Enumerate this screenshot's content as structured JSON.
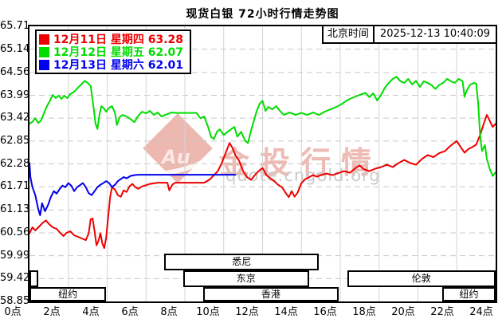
{
  "title": "现货白银 72小时行情走势图",
  "time_label": "北京时间",
  "timestamp": "2025-12-13 10:40:09",
  "watermark": {
    "logo_text": "Au",
    "brand": "金投行情",
    "url": "quote.cngold.org"
  },
  "colors": {
    "red": "#ee0000",
    "green": "#00dd00",
    "blue": "#0000ee",
    "grid_vertical": "#d4d4d4",
    "grid_horizontal": "#c8c8c8",
    "border": "#000000",
    "watermark_pink": "#e59e94",
    "watermark_gray": "#cbcbcb"
  },
  "legend": [
    {
      "label": "12月11日 星期四",
      "value": "63.28",
      "color": "#ee0000"
    },
    {
      "label": "12月12日 星期五",
      "value": "62.07",
      "color": "#00dd00"
    },
    {
      "label": "12月13日 星期六",
      "value": "62.01",
      "color": "#0000ee"
    }
  ],
  "sessions": [
    {
      "label": "",
      "row": 1,
      "start": 0,
      "end": 0.45
    },
    {
      "label": "纽约",
      "row": 2,
      "start": 0,
      "end": 3.95
    },
    {
      "label": "悉尼",
      "row": 0,
      "start": 6.95,
      "end": 14.9
    },
    {
      "label": "东京",
      "row": 1,
      "start": 7.9,
      "end": 14.4
    },
    {
      "label": "香港",
      "row": 2,
      "start": 8.95,
      "end": 15.9
    },
    {
      "label": "伦敦",
      "row": 1,
      "start": 16.35,
      "end": 24
    },
    {
      "label": "纽约",
      "row": 2,
      "start": 21.25,
      "end": 24
    }
  ],
  "chart_data": {
    "type": "line",
    "title": "现货白银 72小时行情走势图",
    "x_unit": "hour",
    "xlim": [
      0,
      24
    ],
    "ylim": [
      58.85,
      65.71
    ],
    "grid": true,
    "legend_position": "top-left",
    "y_ticks": [
      65.71,
      65.14,
      64.56,
      63.99,
      63.42,
      62.85,
      62.28,
      61.71,
      61.13,
      60.56,
      59.99,
      59.42,
      58.85
    ],
    "x_ticks": [
      "0点",
      "2点",
      "4点",
      "6点",
      "8点",
      "10点",
      "12点",
      "14点",
      "16点",
      "18点",
      "20点",
      "22点",
      "24点"
    ],
    "series": [
      {
        "name": "12月11日 星期四",
        "close": 63.28,
        "color": "#ee0000",
        "points": [
          [
            0,
            60.55
          ],
          [
            0.15,
            60.7
          ],
          [
            0.3,
            60.62
          ],
          [
            0.5,
            60.72
          ],
          [
            0.7,
            60.82
          ],
          [
            0.85,
            60.87
          ],
          [
            1.0,
            60.78
          ],
          [
            1.2,
            60.7
          ],
          [
            1.4,
            60.66
          ],
          [
            1.6,
            60.55
          ],
          [
            1.75,
            60.48
          ],
          [
            1.9,
            60.56
          ],
          [
            2.1,
            60.6
          ],
          [
            2.3,
            60.5
          ],
          [
            2.5,
            60.46
          ],
          [
            2.7,
            60.42
          ],
          [
            2.9,
            60.38
          ],
          [
            3.05,
            60.55
          ],
          [
            3.15,
            60.9
          ],
          [
            3.25,
            60.92
          ],
          [
            3.35,
            60.6
          ],
          [
            3.45,
            60.25
          ],
          [
            3.55,
            60.36
          ],
          [
            3.65,
            60.55
          ],
          [
            3.75,
            60.3
          ],
          [
            3.85,
            60.18
          ],
          [
            3.95,
            60.45
          ],
          [
            4.05,
            60.95
          ],
          [
            4.15,
            61.45
          ],
          [
            4.25,
            61.7
          ],
          [
            4.4,
            61.64
          ],
          [
            4.55,
            61.5
          ],
          [
            4.7,
            61.46
          ],
          [
            4.85,
            61.62
          ],
          [
            5.0,
            61.58
          ],
          [
            5.15,
            61.72
          ],
          [
            5.3,
            61.78
          ],
          [
            5.45,
            61.7
          ],
          [
            5.6,
            61.66
          ],
          [
            5.8,
            61.72
          ],
          [
            6.0,
            61.75
          ],
          [
            6.2,
            61.78
          ],
          [
            6.6,
            61.81
          ],
          [
            7.1,
            61.81
          ],
          [
            7.2,
            61.62
          ],
          [
            7.35,
            61.76
          ],
          [
            7.5,
            61.81
          ],
          [
            9.0,
            61.81
          ],
          [
            9.3,
            61.9
          ],
          [
            9.5,
            62.0
          ],
          [
            9.7,
            62.1
          ],
          [
            9.9,
            62.3
          ],
          [
            10.1,
            62.55
          ],
          [
            10.3,
            62.8
          ],
          [
            10.45,
            62.68
          ],
          [
            10.6,
            62.5
          ],
          [
            10.8,
            62.35
          ],
          [
            11.0,
            62.1
          ],
          [
            11.2,
            61.95
          ],
          [
            11.4,
            61.88
          ],
          [
            11.6,
            62.0
          ],
          [
            11.8,
            62.1
          ],
          [
            12.0,
            62.18
          ],
          [
            12.2,
            62.0
          ],
          [
            12.4,
            61.92
          ],
          [
            12.6,
            61.85
          ],
          [
            12.8,
            61.76
          ],
          [
            13.0,
            61.7
          ],
          [
            13.2,
            61.55
          ],
          [
            13.35,
            61.45
          ],
          [
            13.5,
            61.6
          ],
          [
            13.65,
            61.46
          ],
          [
            13.8,
            61.56
          ],
          [
            14.0,
            61.8
          ],
          [
            14.2,
            61.9
          ],
          [
            14.4,
            61.95
          ],
          [
            14.6,
            62.0
          ],
          [
            14.8,
            61.96
          ],
          [
            15.0,
            62.0
          ],
          [
            15.3,
            62.04
          ],
          [
            15.6,
            62.0
          ],
          [
            15.9,
            62.05
          ],
          [
            16.2,
            62.1
          ],
          [
            16.5,
            62.06
          ],
          [
            16.8,
            62.18
          ],
          [
            17.0,
            62.24
          ],
          [
            17.2,
            62.15
          ],
          [
            17.5,
            62.1
          ],
          [
            17.8,
            62.16
          ],
          [
            18.1,
            62.2
          ],
          [
            18.4,
            62.26
          ],
          [
            18.7,
            62.2
          ],
          [
            19.0,
            62.3
          ],
          [
            19.3,
            62.38
          ],
          [
            19.6,
            62.3
          ],
          [
            19.9,
            62.26
          ],
          [
            20.2,
            62.4
          ],
          [
            20.5,
            62.5
          ],
          [
            20.8,
            62.45
          ],
          [
            21.1,
            62.55
          ],
          [
            21.4,
            62.6
          ],
          [
            21.6,
            62.7
          ],
          [
            21.8,
            62.78
          ],
          [
            22.0,
            62.85
          ],
          [
            22.2,
            62.7
          ],
          [
            22.4,
            62.56
          ],
          [
            22.6,
            62.65
          ],
          [
            22.8,
            62.7
          ],
          [
            23.0,
            62.76
          ],
          [
            23.2,
            63.0
          ],
          [
            23.4,
            63.3
          ],
          [
            23.55,
            63.5
          ],
          [
            23.7,
            63.35
          ],
          [
            23.85,
            63.2
          ],
          [
            24,
            63.28
          ]
        ]
      },
      {
        "name": "12月12日 星期五",
        "close": 62.07,
        "color": "#00dd00",
        "points": [
          [
            0,
            63.28
          ],
          [
            0.15,
            63.33
          ],
          [
            0.3,
            63.42
          ],
          [
            0.45,
            63.3
          ],
          [
            0.6,
            63.36
          ],
          [
            0.75,
            63.55
          ],
          [
            0.9,
            63.72
          ],
          [
            1.05,
            63.85
          ],
          [
            1.2,
            64.0
          ],
          [
            1.35,
            63.92
          ],
          [
            1.5,
            63.98
          ],
          [
            1.65,
            63.9
          ],
          [
            1.8,
            63.98
          ],
          [
            1.95,
            63.92
          ],
          [
            2.1,
            64.02
          ],
          [
            2.3,
            64.08
          ],
          [
            2.5,
            64.18
          ],
          [
            2.7,
            64.28
          ],
          [
            2.85,
            64.35
          ],
          [
            3.0,
            64.3
          ],
          [
            3.15,
            64.22
          ],
          [
            3.3,
            63.7
          ],
          [
            3.4,
            63.28
          ],
          [
            3.5,
            63.15
          ],
          [
            3.6,
            63.5
          ],
          [
            3.7,
            63.72
          ],
          [
            3.8,
            63.68
          ],
          [
            3.95,
            63.58
          ],
          [
            4.1,
            63.68
          ],
          [
            4.25,
            63.72
          ],
          [
            4.4,
            63.55
          ],
          [
            4.5,
            63.25
          ],
          [
            4.65,
            63.45
          ],
          [
            4.8,
            63.5
          ],
          [
            5.0,
            63.46
          ],
          [
            5.2,
            63.4
          ],
          [
            5.4,
            63.32
          ],
          [
            5.6,
            63.48
          ],
          [
            5.8,
            63.58
          ],
          [
            6.0,
            63.54
          ],
          [
            6.2,
            63.6
          ],
          [
            6.4,
            63.5
          ],
          [
            6.6,
            63.56
          ],
          [
            6.8,
            63.46
          ],
          [
            7.0,
            63.5
          ],
          [
            7.3,
            63.56
          ],
          [
            7.55,
            63.55
          ],
          [
            8.6,
            63.55
          ],
          [
            8.8,
            63.42
          ],
          [
            9.0,
            63.46
          ],
          [
            9.2,
            63.2
          ],
          [
            9.35,
            62.95
          ],
          [
            9.5,
            62.9
          ],
          [
            9.65,
            63.08
          ],
          [
            9.8,
            63.14
          ],
          [
            10.0,
            63.0
          ],
          [
            10.2,
            63.08
          ],
          [
            10.4,
            63.15
          ],
          [
            10.55,
            63.2
          ],
          [
            10.7,
            62.96
          ],
          [
            10.9,
            63.08
          ],
          [
            11.1,
            62.86
          ],
          [
            11.25,
            62.8
          ],
          [
            11.4,
            63.1
          ],
          [
            11.55,
            63.35
          ],
          [
            11.7,
            63.6
          ],
          [
            11.85,
            63.78
          ],
          [
            12.0,
            63.85
          ],
          [
            12.15,
            63.6
          ],
          [
            12.3,
            63.7
          ],
          [
            12.5,
            63.64
          ],
          [
            12.7,
            63.72
          ],
          [
            12.9,
            63.6
          ],
          [
            13.1,
            63.5
          ],
          [
            13.4,
            63.56
          ],
          [
            13.7,
            63.5
          ],
          [
            14.0,
            63.55
          ],
          [
            14.3,
            63.5
          ],
          [
            14.6,
            63.56
          ],
          [
            14.9,
            63.5
          ],
          [
            15.2,
            63.58
          ],
          [
            15.5,
            63.64
          ],
          [
            15.8,
            63.7
          ],
          [
            16.1,
            63.78
          ],
          [
            16.4,
            63.88
          ],
          [
            16.7,
            63.94
          ],
          [
            17.0,
            64.0
          ],
          [
            17.3,
            64.05
          ],
          [
            17.5,
            63.94
          ],
          [
            17.7,
            64.04
          ],
          [
            17.9,
            63.86
          ],
          [
            18.1,
            64.0
          ],
          [
            18.3,
            64.18
          ],
          [
            18.5,
            64.3
          ],
          [
            18.7,
            64.4
          ],
          [
            18.9,
            64.45
          ],
          [
            19.1,
            64.34
          ],
          [
            19.3,
            64.3
          ],
          [
            19.5,
            64.4
          ],
          [
            19.7,
            64.26
          ],
          [
            19.9,
            64.35
          ],
          [
            20.1,
            64.2
          ],
          [
            20.3,
            64.34
          ],
          [
            20.5,
            64.3
          ],
          [
            20.7,
            64.24
          ],
          [
            20.9,
            64.15
          ],
          [
            21.1,
            64.25
          ],
          [
            21.3,
            64.3
          ],
          [
            21.5,
            64.4
          ],
          [
            21.7,
            64.34
          ],
          [
            21.9,
            64.3
          ],
          [
            22.1,
            64.4
          ],
          [
            22.3,
            64.34
          ],
          [
            22.4,
            63.95
          ],
          [
            22.5,
            64.1
          ],
          [
            22.7,
            64.26
          ],
          [
            22.9,
            64.3
          ],
          [
            23.0,
            64.28
          ],
          [
            23.1,
            63.8
          ],
          [
            23.2,
            63.0
          ],
          [
            23.3,
            62.6
          ],
          [
            23.45,
            62.75
          ],
          [
            23.55,
            62.4
          ],
          [
            23.7,
            62.15
          ],
          [
            23.85,
            61.98
          ],
          [
            24,
            62.07
          ]
        ]
      },
      {
        "name": "12月13日 星期六",
        "close": 62.01,
        "color": "#0000ee",
        "points": [
          [
            0,
            62.3
          ],
          [
            0.05,
            61.95
          ],
          [
            0.15,
            61.7
          ],
          [
            0.3,
            61.5
          ],
          [
            0.45,
            61.15
          ],
          [
            0.55,
            61.0
          ],
          [
            0.65,
            61.3
          ],
          [
            0.8,
            61.1
          ],
          [
            0.95,
            61.25
          ],
          [
            1.1,
            61.45
          ],
          [
            1.25,
            61.6
          ],
          [
            1.4,
            61.54
          ],
          [
            1.55,
            61.65
          ],
          [
            1.7,
            61.74
          ],
          [
            1.85,
            61.7
          ],
          [
            2.0,
            61.8
          ],
          [
            2.15,
            61.74
          ],
          [
            2.3,
            61.6
          ],
          [
            2.45,
            61.7
          ],
          [
            2.6,
            61.75
          ],
          [
            2.75,
            61.8
          ],
          [
            2.9,
            61.7
          ],
          [
            3.05,
            61.55
          ],
          [
            3.2,
            61.5
          ],
          [
            3.35,
            61.6
          ],
          [
            3.5,
            61.7
          ],
          [
            3.65,
            61.76
          ],
          [
            3.8,
            61.8
          ],
          [
            3.95,
            61.85
          ],
          [
            4.1,
            61.8
          ],
          [
            4.25,
            61.7
          ],
          [
            4.4,
            61.76
          ],
          [
            4.55,
            61.85
          ],
          [
            4.7,
            61.9
          ],
          [
            4.85,
            61.95
          ],
          [
            5.0,
            61.92
          ],
          [
            5.2,
            61.98
          ],
          [
            5.4,
            62.0
          ],
          [
            5.6,
            62.01
          ],
          [
            10.6,
            62.01
          ]
        ]
      }
    ]
  }
}
